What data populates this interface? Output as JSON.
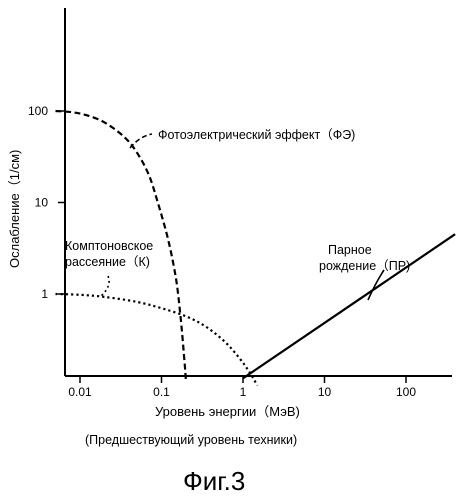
{
  "chart_data": {
    "type": "line",
    "xscale": "log",
    "yscale": "log",
    "xlabel": "Уровень энергии（МэВ)",
    "ylabel": "Ослабление（1/см)",
    "x_ticks": [
      {
        "value": 0.01,
        "label": "0.01"
      },
      {
        "value": 0.1,
        "label": "0.1"
      },
      {
        "value": 1,
        "label": "1"
      },
      {
        "value": 10,
        "label": "10"
      },
      {
        "value": 100,
        "label": "100"
      }
    ],
    "y_ticks": [
      {
        "value": 1,
        "label": "1"
      },
      {
        "value": 10,
        "label": "10"
      },
      {
        "value": 100,
        "label": "100"
      }
    ],
    "series": [
      {
        "name": "Фотоэлектрический эффект（ФЭ)",
        "style": "dashed",
        "color": "#000000",
        "points": [
          [
            0.005,
            100
          ],
          [
            0.008,
            97
          ],
          [
            0.012,
            90
          ],
          [
            0.02,
            75
          ],
          [
            0.035,
            52
          ],
          [
            0.05,
            35
          ],
          [
            0.07,
            20
          ],
          [
            0.09,
            10
          ],
          [
            0.12,
            4
          ],
          [
            0.15,
            1.5
          ],
          [
            0.17,
            0.6
          ],
          [
            0.19,
            0.2
          ],
          [
            0.2,
            0.11
          ]
        ]
      },
      {
        "name": "Комптоновское рассеяние（К)",
        "style": "dotted",
        "color": "#000000",
        "points": [
          [
            0.005,
            1.0
          ],
          [
            0.01,
            0.98
          ],
          [
            0.02,
            0.93
          ],
          [
            0.05,
            0.82
          ],
          [
            0.1,
            0.7
          ],
          [
            0.2,
            0.57
          ],
          [
            0.35,
            0.44
          ],
          [
            0.6,
            0.3
          ],
          [
            0.9,
            0.2
          ],
          [
            1.2,
            0.14
          ],
          [
            1.5,
            0.1
          ]
        ]
      },
      {
        "name": "Парное рождение（ПР)",
        "style": "solid",
        "color": "#000000",
        "points": [
          [
            1.0,
            0.12
          ],
          [
            400,
            4.5
          ]
        ]
      }
    ]
  },
  "annotations": {
    "pe": "Фотоэлектрический эффект（ФЭ)",
    "compton_line1": "Комптоновское",
    "compton_line2": "рассеяние（К)",
    "pair_line1": "Парное",
    "pair_line2": "рождение（ПР)"
  },
  "caption": "(Предшествующий уровень техники)",
  "figure_label": "Фиг.3"
}
